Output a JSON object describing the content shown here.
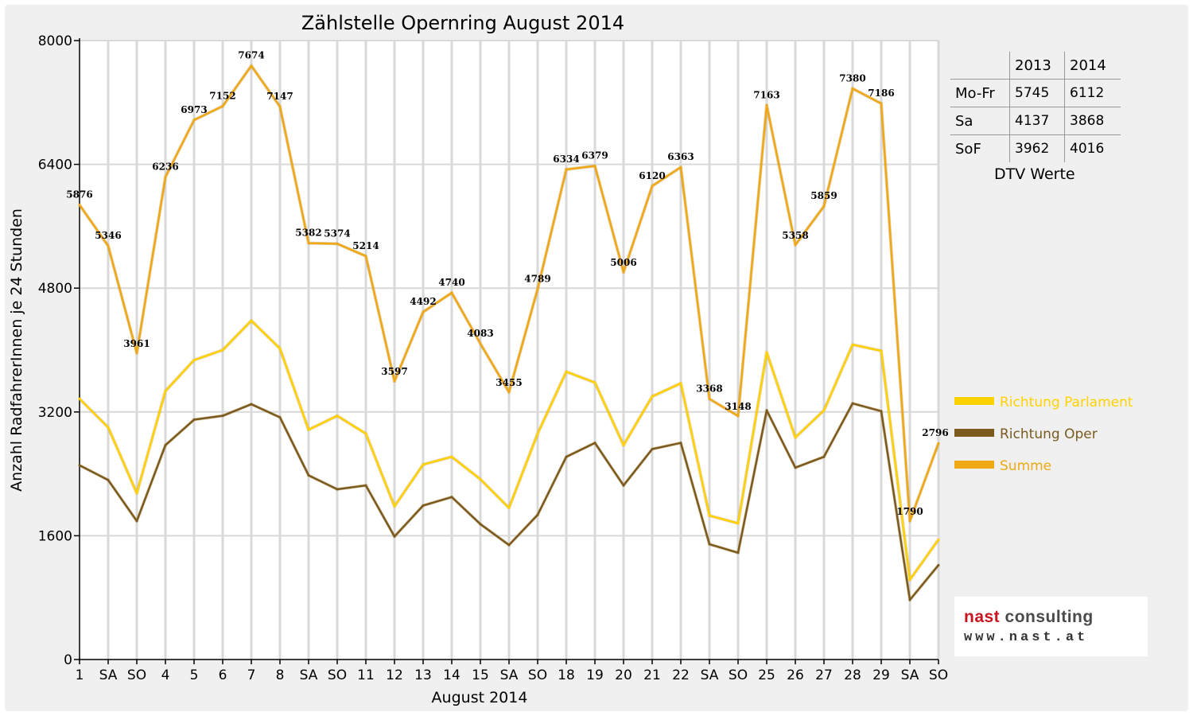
{
  "chart_data": {
    "type": "line",
    "title": "Zählstelle Opernring August 2014",
    "xlabel": "August 2014",
    "ylabel": "Anzahl RadfahrerInnen je 24 Stunden",
    "ylim": [
      0,
      8000
    ],
    "yticks": [
      0,
      1600,
      3200,
      4800,
      6400,
      8000
    ],
    "grid": true,
    "legend_position": "right",
    "categories": [
      "1",
      "SA",
      "SO",
      "4",
      "5",
      "6",
      "7",
      "8",
      "SA",
      "SO",
      "11",
      "12",
      "13",
      "14",
      "15",
      "SA",
      "SO",
      "18",
      "19",
      "20",
      "21",
      "22",
      "SA",
      "SO",
      "25",
      "26",
      "27",
      "28",
      "29",
      "SA",
      "SO"
    ],
    "red_categories": [
      2,
      9,
      14,
      16,
      23,
      30
    ],
    "series": [
      {
        "name": "Richtung Parlament",
        "color": "#ffd200",
        "values": [
          3370,
          3000,
          2150,
          3470,
          3870,
          4000,
          4380,
          4020,
          2970,
          3150,
          2920,
          1980,
          2520,
          2620,
          2330,
          1960,
          2920,
          3720,
          3580,
          2770,
          3400,
          3570,
          1860,
          1760,
          3970,
          2870,
          3220,
          4070,
          3990,
          1030,
          1550
        ]
      },
      {
        "name": "Richtung Oper",
        "color": "#7a5a1e",
        "values": [
          2510,
          2320,
          1790,
          2770,
          3100,
          3150,
          3300,
          3130,
          2380,
          2200,
          2250,
          1590,
          1990,
          2100,
          1750,
          1480,
          1870,
          2620,
          2800,
          2250,
          2720,
          2800,
          1490,
          1380,
          3220,
          2480,
          2620,
          3310,
          3210,
          770,
          1220
        ]
      },
      {
        "name": "Summe",
        "color": "#f0a814",
        "values": [
          5876,
          5346,
          3961,
          6236,
          6973,
          7152,
          7674,
          7147,
          5382,
          5374,
          5214,
          3597,
          4492,
          4740,
          4083,
          3455,
          4789,
          6334,
          6379,
          5006,
          6120,
          6363,
          3368,
          3148,
          7163,
          5358,
          5859,
          7380,
          7186,
          1790,
          2796
        ]
      }
    ],
    "data_labels": [
      "5876",
      "5346",
      "3961",
      "6236",
      "6973",
      "7152",
      "7674",
      "7147",
      "5382",
      "5374",
      "5214",
      "3597",
      "4492",
      "4740",
      "4083",
      "3455",
      "4789",
      "6334",
      "6379",
      "5006",
      "6120",
      "6363",
      "3368",
      "3148",
      "7163",
      "5358",
      "5859",
      "7380",
      "7186",
      "1790",
      "2796"
    ]
  },
  "colors": {
    "red_tick": "#e00000",
    "grid": "#d9d9d9"
  },
  "dtv_table": {
    "headers": [
      "",
      "2013",
      "2014"
    ],
    "rows": [
      {
        "label": "Mo-Fr",
        "y2013": "5745",
        "y2014": "6112"
      },
      {
        "label": "Sa",
        "y2013": "4137",
        "y2014": "3868"
      },
      {
        "label": "SoF",
        "y2013": "3962",
        "y2014": "4016"
      }
    ],
    "caption": "DTV Werte"
  },
  "logo": {
    "name_part1": "nast",
    "name_part2": " consulting",
    "url": "www.nast.at"
  }
}
